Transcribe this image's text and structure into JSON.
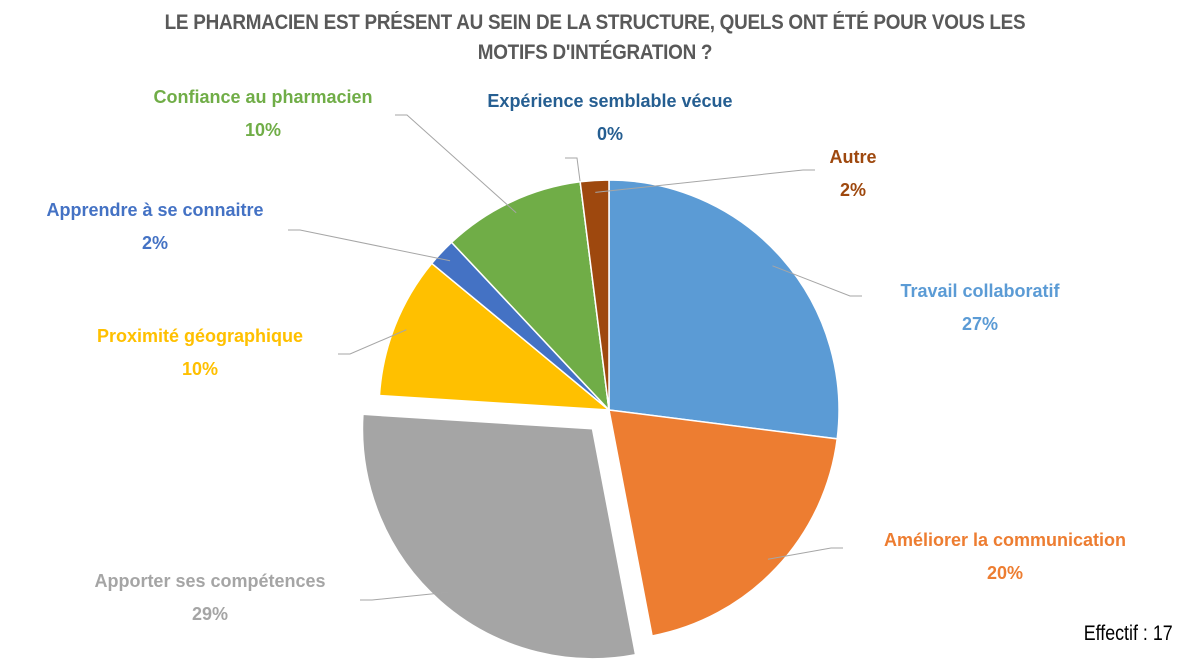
{
  "chart_data": {
    "type": "pie",
    "title": "LE PHARMACIEN EST PRÉSENT AU SEIN DE LA STRUCTURE, QUELS ONT ÉTÉ POUR VOUS LES MOTIFS D'INTÉGRATION ?",
    "categories": [
      "Travail collaboratif",
      "Améliorer la communication",
      "Apporter ses compétences",
      "Proximité géographique",
      "Apprendre à se connaitre",
      "Confiance au pharmacien",
      "Expérience semblable vécue",
      "Autre"
    ],
    "values": [
      27,
      20,
      29,
      10,
      2,
      10,
      0,
      2
    ],
    "value_labels": [
      "27%",
      "20%",
      "29%",
      "10%",
      "2%",
      "10%",
      "0%",
      "2%"
    ],
    "colors": [
      "#5b9bd5",
      "#ed7d31",
      "#a5a5a5",
      "#ffc000",
      "#4472c4",
      "#70ad47",
      "#255e91",
      "#9e480e"
    ],
    "exploded": [
      2
    ],
    "annotation": "Effectif : 17"
  }
}
